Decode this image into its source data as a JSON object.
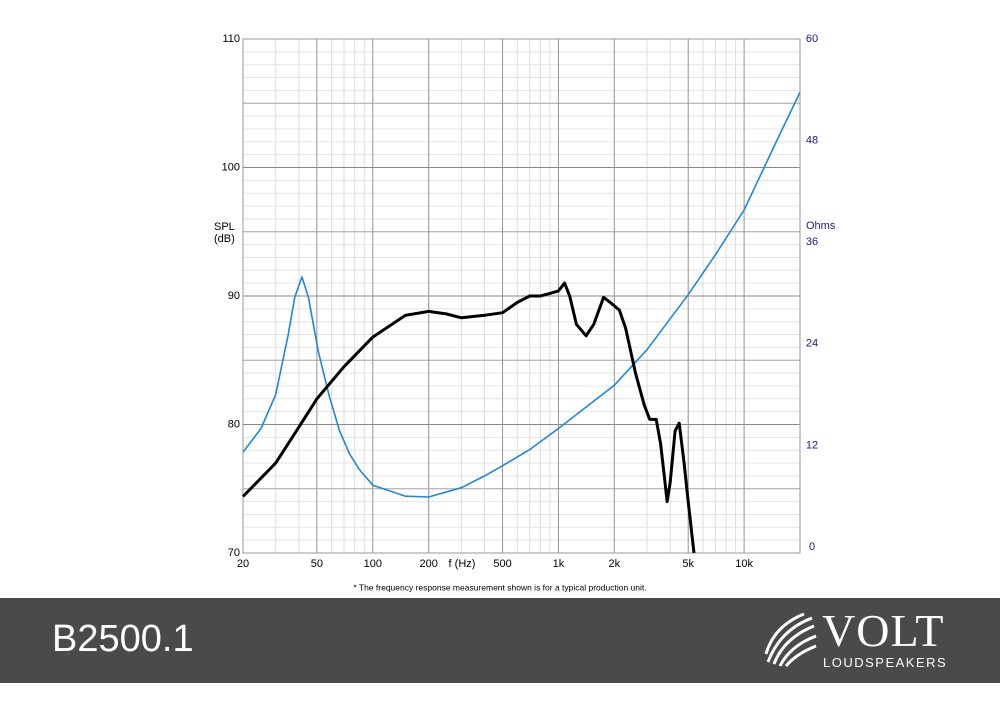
{
  "chart_data": {
    "type": "line",
    "ylabel": "SPL (dB)",
    "y2label": "Ohms",
    "xlabel": "f (Hz)",
    "note": "* The frequency response measurement shown is for a typical production unit.",
    "xlog": true,
    "grid": true,
    "minor_grid": true,
    "xlim": [
      20,
      20000
    ],
    "ylim": [
      70,
      110
    ],
    "y2lim": [
      0,
      60
    ],
    "xticks": [
      20,
      50,
      100,
      200,
      500,
      {
        "value": 1000,
        "label": "1k"
      },
      {
        "value": 2000,
        "label": "2k"
      },
      {
        "value": 5000,
        "label": "5k"
      },
      {
        "value": 10000,
        "label": "10k"
      }
    ],
    "yticks": [
      70,
      80,
      90,
      100,
      110
    ],
    "y2ticks": [
      0,
      12,
      24,
      36,
      48,
      60
    ],
    "y2color": "#1a1a8c",
    "series": [
      {
        "color": "#000000",
        "x": [
          20,
          30,
          40,
          50,
          70,
          100,
          150,
          200,
          250,
          300,
          400,
          500,
          600,
          700,
          800,
          900,
          1000,
          1080,
          1150,
          1250,
          1410,
          1550,
          1750,
          1900,
          2130,
          2300,
          2600,
          2900,
          3100,
          3360,
          3550,
          3750,
          3850,
          4000,
          4250,
          4470,
          4750,
          5000,
          5370
        ],
        "values": [
          74.4,
          77,
          79.8,
          82,
          84.5,
          86.8,
          88.5,
          88.8,
          88.6,
          88.3,
          88.5,
          88.7,
          89.5,
          90,
          90,
          90.2,
          90.4,
          91,
          90,
          87.8,
          86.9,
          87.8,
          89.9,
          89.5,
          88.9,
          87.5,
          84,
          81.5,
          80.4,
          80.4,
          78.5,
          75.5,
          74,
          75.5,
          79.5,
          80.1,
          77,
          74,
          70
        ]
      },
      {
        "color": "#1e88d8",
        "axis": "y2",
        "x": [
          20,
          25,
          30,
          35,
          38,
          41.5,
          45,
          51,
          58,
          66,
          75,
          85,
          100,
          150,
          200,
          300,
          400,
          500,
          700,
          1000,
          2000,
          3000,
          5000,
          7000,
          10000,
          15000,
          20000
        ],
        "values": [
          11.2,
          14,
          18,
          25,
          29.5,
          31.9,
          29.5,
          23,
          18,
          13.8,
          11,
          9.1,
          7.3,
          6,
          5.9,
          7,
          8.4,
          9.6,
          11.5,
          14,
          19.1,
          23.3,
          29.8,
          34.5,
          39.8,
          48,
          53.7
        ]
      }
    ]
  },
  "footer": {
    "model": "B2500.1",
    "brand": "VOLT",
    "brand_sub": "LOUDSPEAKERS"
  }
}
